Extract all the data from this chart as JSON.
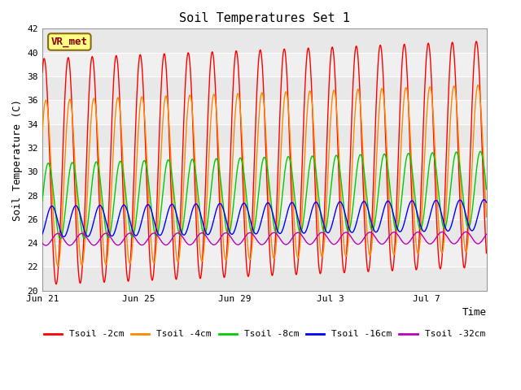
{
  "title": "Soil Temperatures Set 1",
  "xlabel": "Time",
  "ylabel": "Soil Temperature (C)",
  "ylim": [
    20,
    42
  ],
  "yticks": [
    20,
    22,
    24,
    26,
    28,
    30,
    32,
    34,
    36,
    38,
    40,
    42
  ],
  "x_tick_labels": [
    "Jun 21",
    "Jun 25",
    "Jun 29",
    "Jul 3",
    "Jul 7"
  ],
  "x_tick_offsets": [
    0,
    4,
    8,
    12,
    16
  ],
  "xlim_end": 18.5,
  "series": {
    "Tsoil -2cm": {
      "color": "#FF0000",
      "amplitude": 9.5,
      "mean": 30.0,
      "phase": 0.58,
      "drift": 0.08
    },
    "Tsoil -4cm": {
      "color": "#FF8800",
      "amplitude": 7.0,
      "mean": 29.0,
      "phase": 0.65,
      "drift": 0.07
    },
    "Tsoil -8cm": {
      "color": "#00CC00",
      "amplitude": 3.2,
      "mean": 27.5,
      "phase": 0.75,
      "drift": 0.055
    },
    "Tsoil -16cm": {
      "color": "#0000FF",
      "amplitude": 1.3,
      "mean": 25.8,
      "phase": 0.9,
      "drift": 0.03
    },
    "Tsoil -32cm": {
      "color": "#BB00BB",
      "amplitude": 0.5,
      "mean": 24.3,
      "phase": 1.15,
      "drift": 0.008
    }
  },
  "annotation_label": "VR_met",
  "bg_color": "#FFFFFF",
  "band_colors": [
    "#E8E8E8",
    "#F0F0F0"
  ],
  "grid_color": "#FFFFFF",
  "title_fontsize": 11,
  "axis_label_fontsize": 9,
  "tick_fontsize": 8,
  "legend_fontsize": 8,
  "line_width": 1.0
}
